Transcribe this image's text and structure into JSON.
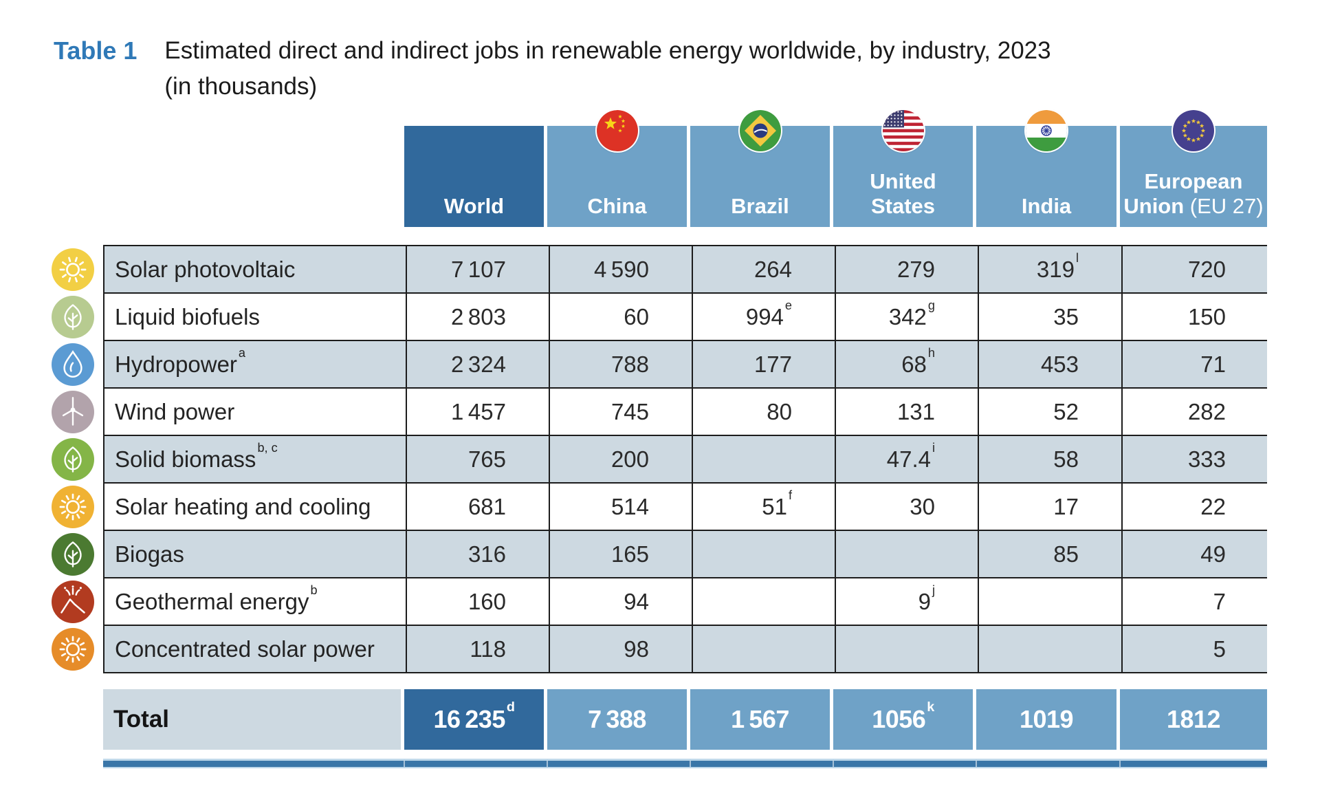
{
  "title": {
    "tag": "Table 1",
    "line1": "Estimated direct and indirect jobs in renewable energy worldwide, by industry, 2023",
    "line2": "(in thousands)"
  },
  "colors": {
    "header_dark_blue": "#31699c",
    "header_light_blue": "#6fa2c7",
    "row_stripe": "#cdd9e1",
    "border_dark": "#1c1c1c",
    "bottom_bar_blue": "#3a76a8",
    "bottom_bar_edge": "#bfd8ea",
    "title_blue": "#2f79b7",
    "body_text": "#232323"
  },
  "table": {
    "columns": [
      {
        "id": "world",
        "label_lines": [
          "World"
        ],
        "suffix": "",
        "flag": null,
        "variant": "dark"
      },
      {
        "id": "china",
        "label_lines": [
          "China"
        ],
        "suffix": "",
        "flag": "china-flag-icon",
        "variant": "light"
      },
      {
        "id": "brazil",
        "label_lines": [
          "Brazil"
        ],
        "suffix": "",
        "flag": "brazil-flag-icon",
        "variant": "light"
      },
      {
        "id": "united-states",
        "label_lines": [
          "United",
          "States"
        ],
        "suffix": "",
        "flag": "us-flag-icon",
        "variant": "light"
      },
      {
        "id": "india",
        "label_lines": [
          "India"
        ],
        "suffix": "",
        "flag": "india-flag-icon",
        "variant": "light"
      },
      {
        "id": "eu",
        "label_lines": [
          "European",
          "Union"
        ],
        "suffix": " (EU 27)",
        "flag": "eu-flag-icon",
        "variant": "light"
      }
    ],
    "rows": [
      {
        "icon": "solar-pv-icon",
        "icon_color": "#f2cf44",
        "label": "Solar photovoltaic",
        "label_sup": "",
        "values": [
          {
            "v": "7 107"
          },
          {
            "v": "4 590"
          },
          {
            "v": "264"
          },
          {
            "v": "279"
          },
          {
            "v": "319",
            "sup": "l"
          },
          {
            "v": "720"
          }
        ]
      },
      {
        "icon": "liquid-biofuels-leaf-icon",
        "icon_color": "#b7cb90",
        "label": "Liquid biofuels",
        "label_sup": "",
        "values": [
          {
            "v": "2 803"
          },
          {
            "v": "60"
          },
          {
            "v": "994",
            "sup": "e"
          },
          {
            "v": "342",
            "sup": "g"
          },
          {
            "v": "35"
          },
          {
            "v": "150"
          }
        ]
      },
      {
        "icon": "hydropower-drop-icon",
        "icon_color": "#5b9bd3",
        "label": "Hydropower",
        "label_sup": "a",
        "values": [
          {
            "v": "2 324"
          },
          {
            "v": "788"
          },
          {
            "v": "177"
          },
          {
            "v": "68",
            "sup": "h"
          },
          {
            "v": "453"
          },
          {
            "v": "71"
          }
        ]
      },
      {
        "icon": "wind-turbine-icon",
        "icon_color": "#b2a3ab",
        "label": "Wind power",
        "label_sup": "",
        "values": [
          {
            "v": "1 457"
          },
          {
            "v": "745"
          },
          {
            "v": "80"
          },
          {
            "v": "131"
          },
          {
            "v": "52"
          },
          {
            "v": "282"
          }
        ]
      },
      {
        "icon": "solid-biomass-leaf-icon",
        "icon_color": "#84b547",
        "label": "Solid biomass",
        "label_sup": "b, c",
        "values": [
          {
            "v": "765"
          },
          {
            "v": "200"
          },
          {
            "v": ""
          },
          {
            "v": "47.4",
            "sup": "i"
          },
          {
            "v": "58"
          },
          {
            "v": "333"
          }
        ]
      },
      {
        "icon": "solar-heating-sun-icon",
        "icon_color": "#f0b233",
        "label": "Solar heating and cooling",
        "label_sup": "",
        "values": [
          {
            "v": "681"
          },
          {
            "v": "514"
          },
          {
            "v": "51",
            "sup": "f"
          },
          {
            "v": "30"
          },
          {
            "v": "17"
          },
          {
            "v": "22"
          }
        ]
      },
      {
        "icon": "biogas-leaf-icon",
        "icon_color": "#4b7a31",
        "label": "Biogas",
        "label_sup": "",
        "values": [
          {
            "v": "316"
          },
          {
            "v": "165"
          },
          {
            "v": ""
          },
          {
            "v": ""
          },
          {
            "v": "85"
          },
          {
            "v": "49"
          }
        ]
      },
      {
        "icon": "geothermal-volcano-icon",
        "icon_color": "#b23b20",
        "label": "Geothermal energy",
        "label_sup": "b",
        "values": [
          {
            "v": "160"
          },
          {
            "v": "94"
          },
          {
            "v": ""
          },
          {
            "v": "9",
            "sup": "j"
          },
          {
            "v": ""
          },
          {
            "v": "7"
          }
        ]
      },
      {
        "icon": "concentrated-solar-sun-icon",
        "icon_color": "#e68c29",
        "label": "Concentrated solar power",
        "label_sup": "",
        "values": [
          {
            "v": "118"
          },
          {
            "v": "98"
          },
          {
            "v": ""
          },
          {
            "v": ""
          },
          {
            "v": ""
          },
          {
            "v": "5"
          }
        ]
      }
    ],
    "total": {
      "label": "Total",
      "values": [
        {
          "v": "16 235",
          "sup": "d"
        },
        {
          "v": "7 388"
        },
        {
          "v": "1 567"
        },
        {
          "v": "1056",
          "sup": "k"
        },
        {
          "v": "1019"
        },
        {
          "v": "1812"
        }
      ]
    }
  }
}
